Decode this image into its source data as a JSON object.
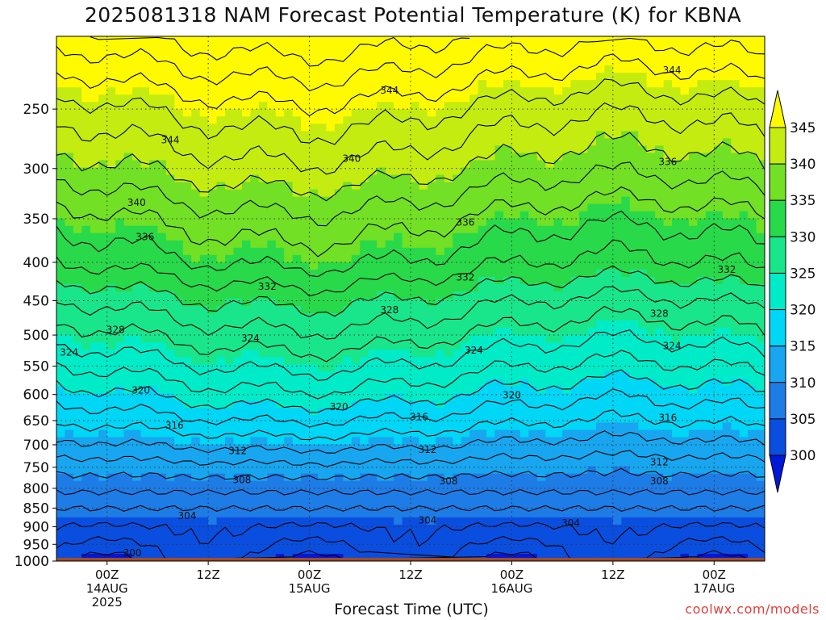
{
  "title": "2025081318 NAM Forecast Potential Temperature (K) for KBNA",
  "watermark": "coolwx.com/models",
  "chart_data": {
    "type": "heatmap",
    "title": "2025081318 NAM Forecast Potential Temperature (K) for KBNA",
    "xlabel": "Forecast Time (UTC)",
    "ylabel": "",
    "y_scale": "log-pressure (inverted)",
    "y_ticks": [
      "250",
      "300",
      "350",
      "400",
      "450",
      "500",
      "550",
      "600",
      "650",
      "700",
      "750",
      "800",
      "850",
      "900",
      "950",
      "1000"
    ],
    "x_ticks": [
      {
        "lines": [
          "00Z",
          "14AUG",
          "2025"
        ],
        "hour": 6
      },
      {
        "lines": [
          "12Z"
        ],
        "hour": 18
      },
      {
        "lines": [
          "00Z",
          "15AUG"
        ],
        "hour": 30
      },
      {
        "lines": [
          "12Z"
        ],
        "hour": 42
      },
      {
        "lines": [
          "00Z",
          "16AUG"
        ],
        "hour": 54
      },
      {
        "lines": [
          "12Z"
        ],
        "hour": 66
      },
      {
        "lines": [
          "00Z",
          "17AUG"
        ],
        "hour": 78
      }
    ],
    "x_range_hours": [
      0,
      84
    ],
    "p_range": [
      200,
      1000
    ],
    "ground_level_hpa": 990,
    "colorbar": {
      "levels": [
        "300",
        "305",
        "310",
        "315",
        "320",
        "325",
        "330",
        "335",
        "340",
        "345"
      ],
      "colors": [
        "#0018d8",
        "#0a4ee0",
        "#1e7ce6",
        "#17a6ef",
        "#00d6f6",
        "#00ecc8",
        "#19e68a",
        "#28d94a",
        "#72e024",
        "#c4ec10",
        "#fffa00"
      ],
      "extend": "both"
    },
    "grid": "dotted",
    "profile": [
      {
        "p": 200,
        "theta": 350
      },
      {
        "p": 250,
        "theta": 344
      },
      {
        "p": 300,
        "theta": 340
      },
      {
        "p": 350,
        "theta": 336
      },
      {
        "p": 400,
        "theta": 333
      },
      {
        "p": 450,
        "theta": 329
      },
      {
        "p": 500,
        "theta": 326
      },
      {
        "p": 550,
        "theta": 323
      },
      {
        "p": 600,
        "theta": 320
      },
      {
        "p": 650,
        "theta": 317
      },
      {
        "p": 700,
        "theta": 314
      },
      {
        "p": 750,
        "theta": 311
      },
      {
        "p": 800,
        "theta": 308.5
      },
      {
        "p": 850,
        "theta": 306
      },
      {
        "p": 900,
        "theta": 304
      },
      {
        "p": 950,
        "theta": 302.5
      },
      {
        "p": 1000,
        "theta": 301
      }
    ],
    "contour_labels": [
      {
        "text": "344",
        "hour": 13.5,
        "p": 275
      },
      {
        "text": "344",
        "hour": 39.5,
        "p": 236
      },
      {
        "text": "344",
        "hour": 73,
        "p": 222
      },
      {
        "text": "340",
        "hour": 9.5,
        "p": 333
      },
      {
        "text": "340",
        "hour": 35,
        "p": 291
      },
      {
        "text": "336",
        "hour": 10.5,
        "p": 370
      },
      {
        "text": "336",
        "hour": 48.5,
        "p": 354
      },
      {
        "text": "336",
        "hour": 72.5,
        "p": 294
      },
      {
        "text": "332",
        "hour": 25,
        "p": 431
      },
      {
        "text": "332",
        "hour": 48.5,
        "p": 419
      },
      {
        "text": "332",
        "hour": 79.5,
        "p": 409
      },
      {
        "text": "328",
        "hour": 7,
        "p": 492
      },
      {
        "text": "328",
        "hour": 39.5,
        "p": 463
      },
      {
        "text": "328",
        "hour": 71.5,
        "p": 468
      },
      {
        "text": "324",
        "hour": 1.5,
        "p": 527
      },
      {
        "text": "324",
        "hour": 23,
        "p": 505
      },
      {
        "text": "324",
        "hour": 49.5,
        "p": 524
      },
      {
        "text": "324",
        "hour": 73,
        "p": 517
      },
      {
        "text": "320",
        "hour": 10,
        "p": 592
      },
      {
        "text": "320",
        "hour": 33.5,
        "p": 623
      },
      {
        "text": "320",
        "hour": 54,
        "p": 601
      },
      {
        "text": "316",
        "hour": 14,
        "p": 660
      },
      {
        "text": "316",
        "hour": 43,
        "p": 643
      },
      {
        "text": "316",
        "hour": 72.5,
        "p": 644
      },
      {
        "text": "312",
        "hour": 21.5,
        "p": 713
      },
      {
        "text": "312",
        "hour": 44,
        "p": 711
      },
      {
        "text": "312",
        "hour": 71.5,
        "p": 738
      },
      {
        "text": "308",
        "hour": 22,
        "p": 780
      },
      {
        "text": "308",
        "hour": 46.5,
        "p": 783
      },
      {
        "text": "308",
        "hour": 71.5,
        "p": 783
      },
      {
        "text": "304",
        "hour": 15.5,
        "p": 870
      },
      {
        "text": "304",
        "hour": 44,
        "p": 882
      },
      {
        "text": "304",
        "hour": 61,
        "p": 890
      },
      {
        "text": "300",
        "hour": 9,
        "p": 975
      }
    ]
  }
}
